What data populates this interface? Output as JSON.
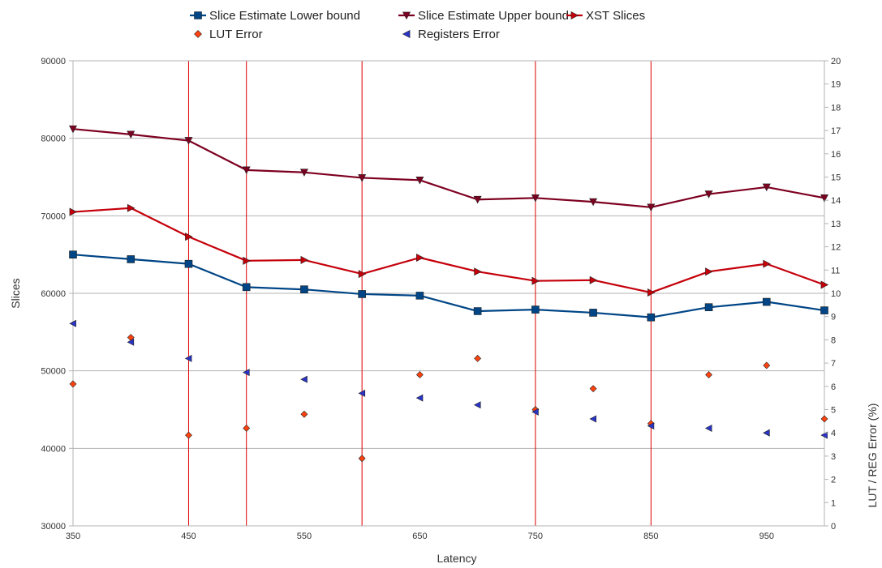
{
  "chart_data": {
    "type": "line",
    "xlabel": "Latency",
    "ylabel": "Slices",
    "y2label": "LUT / REG Error (%)",
    "xlim": [
      350,
      1000
    ],
    "ylim": [
      30000,
      90000
    ],
    "y2lim": [
      0,
      20
    ],
    "x_ticks": [
      350,
      450,
      550,
      650,
      750,
      850,
      950
    ],
    "y_ticks": [
      30000,
      40000,
      50000,
      60000,
      70000,
      80000,
      90000
    ],
    "y2_ticks": [
      0,
      1,
      2,
      3,
      4,
      5,
      6,
      7,
      8,
      9,
      10,
      11,
      12,
      13,
      14,
      15,
      16,
      17,
      18,
      19,
      20
    ],
    "grid": "horizontal",
    "legend_position": "top",
    "x": [
      350,
      400,
      450,
      500,
      550,
      600,
      650,
      700,
      750,
      800,
      850,
      900,
      950,
      1000
    ],
    "series": [
      {
        "name": "Slice Estimate Lower bound",
        "axis": "left",
        "style": "line",
        "marker": "square",
        "color": "#004586",
        "values": [
          65000,
          64400,
          63800,
          60800,
          60500,
          59900,
          59700,
          57700,
          57900,
          57500,
          56900,
          58200,
          58900,
          57800
        ]
      },
      {
        "name": "Slice Estimate Upper bound",
        "axis": "left",
        "style": "line",
        "marker": "triangle-down",
        "color": "#7e0021",
        "values": [
          81200,
          80500,
          79700,
          75900,
          75600,
          74900,
          74600,
          72100,
          72300,
          71800,
          71100,
          72800,
          73700,
          72300
        ]
      },
      {
        "name": "XST Slices",
        "axis": "left",
        "style": "line",
        "marker": "triangle-right",
        "color": "#c5000b",
        "values": [
          70500,
          71000,
          67300,
          64200,
          64300,
          62500,
          64600,
          62800,
          61600,
          61700,
          60100,
          62800,
          63800,
          61100
        ]
      },
      {
        "name": "LUT Error",
        "axis": "right",
        "style": "scatter",
        "marker": "diamond",
        "color": "#ff420e",
        "values": [
          6.1,
          8.1,
          3.9,
          4.2,
          4.8,
          2.9,
          6.5,
          7.2,
          5.0,
          5.9,
          4.4,
          6.5,
          6.9,
          4.6
        ]
      },
      {
        "name": "Registers Error",
        "axis": "right",
        "style": "scatter",
        "marker": "triangle-left",
        "color": "#2a35c8",
        "values": [
          8.7,
          7.9,
          7.2,
          6.6,
          6.3,
          5.7,
          5.5,
          5.2,
          4.9,
          4.6,
          4.3,
          4.2,
          4.0,
          3.9
        ]
      }
    ],
    "vertical_markers": {
      "color": "#dd0000",
      "x": [
        350,
        450,
        500,
        600,
        750,
        850
      ]
    }
  }
}
